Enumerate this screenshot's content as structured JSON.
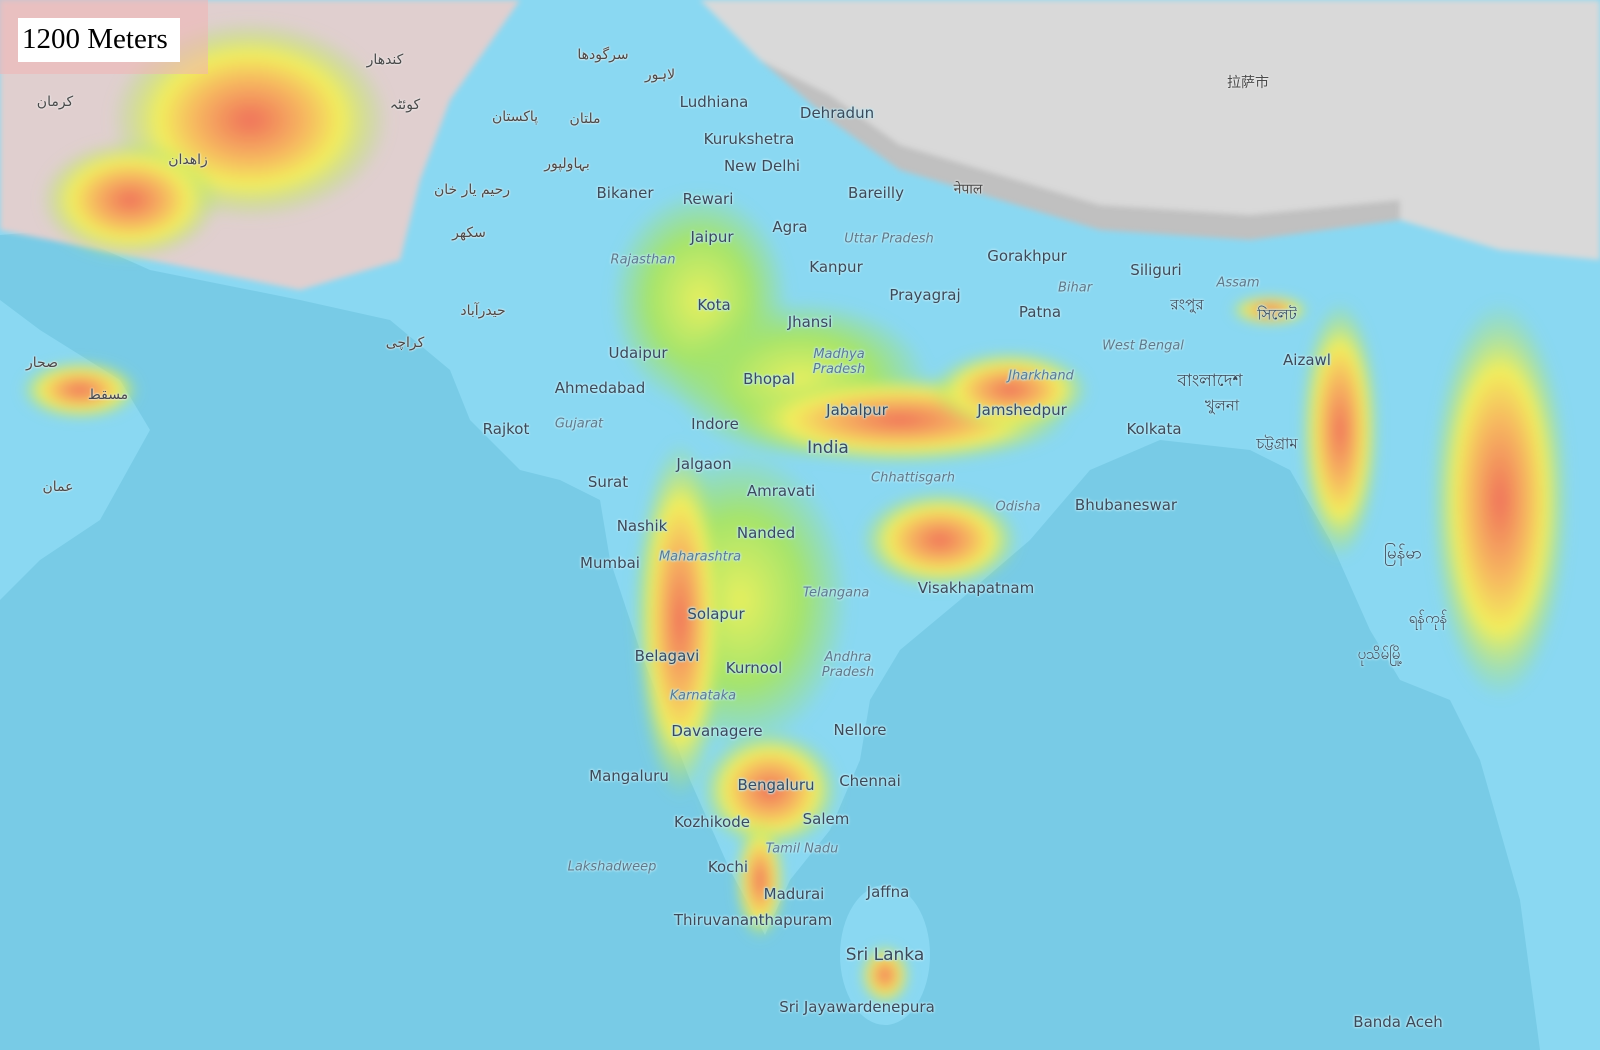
{
  "scale_label": "1200 Meters",
  "colors": {
    "sea": "#78cbe6",
    "lowland": "#8ad8f2",
    "mountains": "#d9d9d9",
    "elevation_low": "#9be36b",
    "elevation_mid": "#f2ee5c",
    "elevation_high": "#f0705a"
  },
  "labels": {
    "cities": [
      "Ludhiana",
      "Kurukshetra",
      "New Delhi",
      "Dehradun",
      "Bikaner",
      "Rewari",
      "Bareilly",
      "Jaipur",
      "Agra",
      "Kanpur",
      "Gorakhpur",
      "Siliguri",
      "Kota",
      "Prayagraj",
      "Patna",
      "Jhansi",
      "Udaipur",
      "Aizawl",
      "Ahmedabad",
      "Bhopal",
      "Jabalpur",
      "Jamshedpur",
      "Rajkot",
      "Indore",
      "Kolkata",
      "Jalgaon",
      "Amravati",
      "Surat",
      "Bhubaneswar",
      "Nashik",
      "Nanded",
      "Mumbai",
      "Visakhapatnam",
      "Solapur",
      "Belagavi",
      "Kurnool",
      "Davanagere",
      "Nellore",
      "Mangaluru",
      "Bengaluru",
      "Chennai",
      "Kozhikode",
      "Salem",
      "Kochi",
      "Madurai",
      "Jaffna",
      "Thiruvananthapuram",
      "Sri Jayawardenepura",
      "Banda Aceh"
    ],
    "regions": [
      "Uttar Pradesh",
      "Rajasthan",
      "Assam",
      "Bihar",
      "Madhya Pradesh",
      "West Bengal",
      "Jharkhand",
      "Gujarat",
      "Chhattisgarh",
      "Odisha",
      "Maharashtra",
      "Telangana",
      "Andhra Pradesh",
      "Karnataka",
      "Tamil Nadu",
      "Lakshadweep"
    ],
    "countries": [
      "India",
      "Sri Lanka"
    ],
    "foreign": [
      "پاکستان",
      "ملتان",
      "کراچی",
      "لاہور",
      "سرگودھا",
      "بہاولپور",
      "رحیم یار خان",
      "سکھر",
      "حیدرآباد",
      "کوئٹہ",
      "کندھار",
      "زاهدان",
      "کرمان",
      "مسقط",
      "صحار",
      "عمان",
      "नेपाल",
      "বাংলাদেশ",
      "খুলনা",
      "চট্টগ্রাম",
      "সিলেট",
      "রংপুর",
      "拉萨市",
      "မြန်မာ",
      "ရန်ကုန်",
      "ပုသိမ်မြို့"
    ]
  }
}
